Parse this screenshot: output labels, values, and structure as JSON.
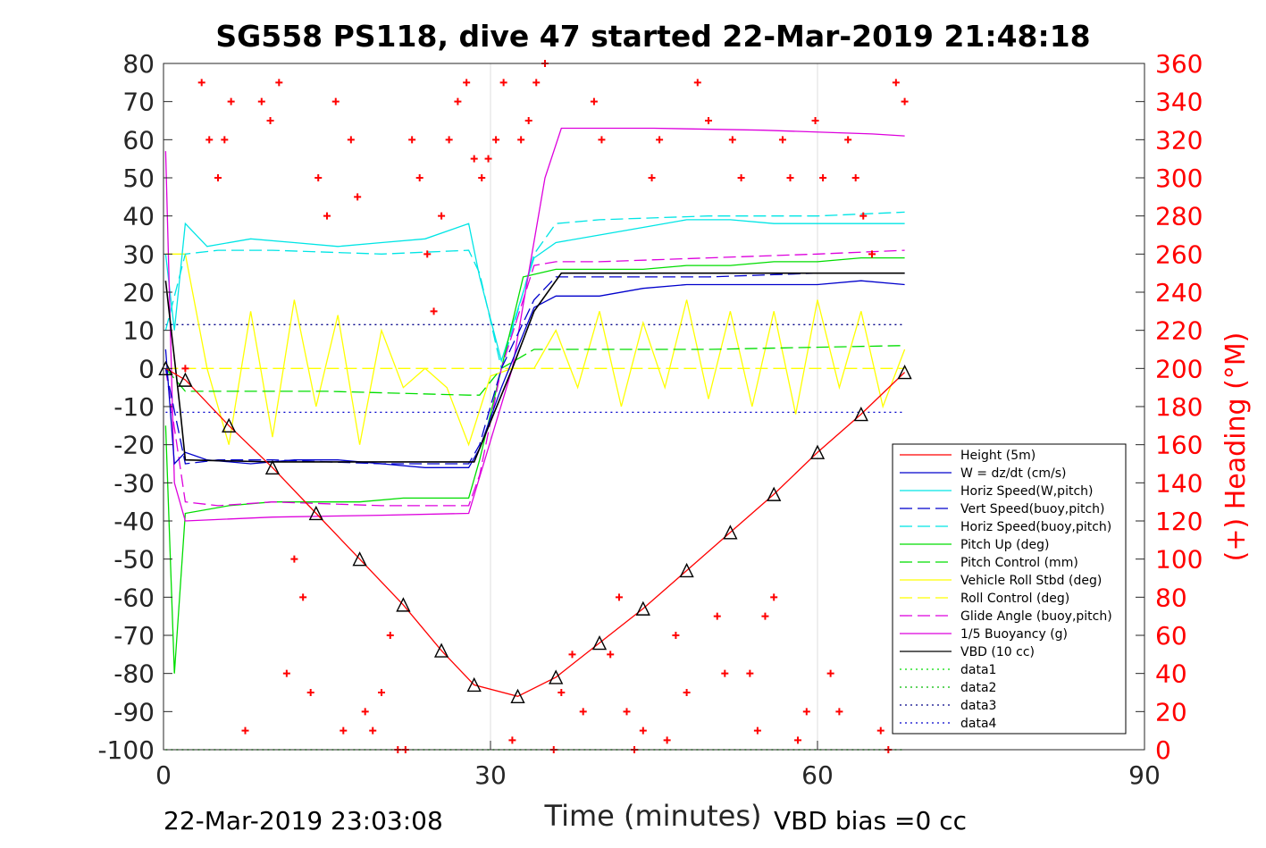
{
  "chart_data": {
    "type": "line",
    "title": "SG558 PS118, dive 47 started 22-Mar-2019 21:48:18",
    "xlabel": "Time (minutes)",
    "ylabel_right": "(+) Heading (°M)",
    "xlim": [
      0,
      90
    ],
    "ylim": [
      -100,
      80
    ],
    "ylim_right": [
      0,
      360
    ],
    "x_ticks": [
      0,
      30,
      60,
      90
    ],
    "y_ticks": [
      80,
      70,
      60,
      50,
      40,
      30,
      20,
      10,
      0,
      -10,
      -20,
      -30,
      -40,
      -50,
      -60,
      -70,
      -80,
      -90,
      -100
    ],
    "y_ticks_right": [
      360,
      340,
      320,
      300,
      280,
      260,
      240,
      220,
      200,
      180,
      160,
      140,
      120,
      100,
      80,
      60,
      40,
      20,
      0
    ],
    "grid": true,
    "legend_position": "lower-right",
    "footer_left": "22-Mar-2019 23:03:08",
    "footer_right": "VBD bias =0 cc",
    "colors": {
      "heading": "#ff0000",
      "right_axis": "#ff0000"
    },
    "legend": [
      {
        "name": "Height (5m)",
        "color": "#ff0000",
        "style": "solid"
      },
      {
        "name": "W = dz/dt (cm/s)",
        "color": "#0000cc",
        "style": "solid"
      },
      {
        "name": "Horiz Speed(W,pitch)",
        "color": "#00e5e5",
        "style": "solid"
      },
      {
        "name": "Vert Speed(buoy,pitch)",
        "color": "#0000cc",
        "style": "dashed"
      },
      {
        "name": "Horiz Speed(buoy,pitch)",
        "color": "#00e5e5",
        "style": "dashed"
      },
      {
        "name": "Pitch Up (deg)",
        "color": "#00dd00",
        "style": "solid"
      },
      {
        "name": "Pitch Control (mm)",
        "color": "#00dd00",
        "style": "dashed"
      },
      {
        "name": "Vehicle Roll Stbd (deg)",
        "color": "#ffff00",
        "style": "solid"
      },
      {
        "name": "Roll Control (deg)",
        "color": "#ffff00",
        "style": "dashed"
      },
      {
        "name": "Glide Angle (buoy,pitch)",
        "color": "#dd00dd",
        "style": "dashed"
      },
      {
        "name": "1/5 Buoyancy (g)",
        "color": "#dd00dd",
        "style": "solid"
      },
      {
        "name": "VBD (10 cc)",
        "color": "#000000",
        "style": "solid"
      },
      {
        "name": "data1",
        "color": "#00dd00",
        "style": "dotted"
      },
      {
        "name": "data2",
        "color": "#00bb00",
        "style": "dotted"
      },
      {
        "name": "data3",
        "color": "#000088",
        "style": "dotted"
      },
      {
        "name": "data4",
        "color": "#0000cc",
        "style": "dotted"
      }
    ],
    "series": [
      {
        "name": "Height (5m)",
        "x": [
          0.2,
          2,
          6,
          10,
          14,
          18,
          22,
          25.5,
          28.5,
          32.5,
          36,
          40,
          44,
          48,
          52,
          56,
          60,
          64,
          68
        ],
        "y": [
          0,
          -3,
          -15,
          -26,
          -38,
          -50,
          -62,
          -74,
          -83,
          -86,
          -81,
          -72,
          -63,
          -53,
          -43,
          -33,
          -22,
          -12,
          -1
        ]
      },
      {
        "name": "W = dz/dt (cm/s)",
        "x": [
          0.2,
          1,
          2,
          4,
          8,
          12,
          16,
          20,
          24,
          28,
          29,
          31,
          34,
          36,
          40,
          44,
          48,
          52,
          56,
          60,
          64,
          68
        ],
        "y": [
          5,
          -25,
          -22,
          -24,
          -25,
          -24,
          -24,
          -25,
          -26,
          -26,
          -21,
          -5,
          16,
          19,
          19,
          21,
          22,
          22,
          22,
          22,
          23,
          22
        ]
      },
      {
        "name": "Horiz Speed(W,pitch)",
        "x": [
          0.2,
          1,
          2,
          4,
          8,
          12,
          16,
          20,
          24,
          28,
          29,
          31,
          34,
          36,
          40,
          44,
          48,
          52,
          56,
          60,
          64,
          68
        ],
        "y": [
          30,
          10,
          38,
          32,
          34,
          33,
          32,
          33,
          34,
          38,
          24,
          2,
          29,
          33,
          35,
          37,
          39,
          39,
          38,
          38,
          38,
          38
        ]
      },
      {
        "name": "Vert Speed(buoy,pitch)",
        "x": [
          0.2,
          2,
          5,
          10,
          20,
          28,
          29,
          31,
          34,
          36,
          40,
          50,
          60,
          68
        ],
        "y": [
          0,
          -25,
          -24,
          -24,
          -25,
          -25,
          -20,
          0,
          18,
          24,
          24,
          24,
          25,
          25
        ]
      },
      {
        "name": "Horiz Speed(buoy,pitch)",
        "x": [
          0.2,
          2,
          5,
          10,
          20,
          28,
          29,
          31,
          34,
          36,
          40,
          50,
          60,
          68
        ],
        "y": [
          10,
          30,
          31,
          31,
          30,
          31,
          25,
          0,
          30,
          38,
          39,
          40,
          40,
          41
        ]
      },
      {
        "name": "Pitch Up (deg)",
        "x": [
          0.2,
          1,
          2,
          6,
          10,
          14,
          18,
          22,
          26,
          28,
          29,
          31,
          33,
          36,
          40,
          44,
          48,
          52,
          56,
          60,
          64,
          68
        ],
        "y": [
          -15,
          -80,
          -38,
          -36,
          -35,
          -35,
          -35,
          -34,
          -34,
          -34,
          -24,
          0,
          24,
          26,
          26,
          26,
          27,
          27,
          28,
          28,
          29,
          29
        ]
      },
      {
        "name": "Pitch Control (mm)",
        "x": [
          0.2,
          2,
          5,
          15,
          28,
          29,
          31,
          34,
          50,
          68
        ],
        "y": [
          0,
          -6,
          -6,
          -6,
          -7,
          -7,
          0,
          5,
          5,
          6
        ]
      },
      {
        "name": "Vehicle Roll Stbd (deg)",
        "x": [
          0.2,
          2,
          4,
          6,
          8,
          10,
          12,
          14,
          16,
          18,
          20,
          22,
          24,
          26,
          28,
          30,
          32,
          34,
          36,
          38,
          40,
          42,
          44,
          46,
          48,
          50,
          52,
          54,
          56,
          58,
          60,
          62,
          64,
          66,
          68
        ],
        "y": [
          30,
          30,
          0,
          -20,
          15,
          -18,
          18,
          -10,
          14,
          -20,
          10,
          -5,
          0,
          -5,
          -20,
          -2,
          0,
          0,
          10,
          -5,
          15,
          -10,
          12,
          -5,
          18,
          -8,
          15,
          -10,
          15,
          -12,
          18,
          -5,
          15,
          -10,
          5
        ]
      },
      {
        "name": "Roll Control (deg)",
        "x": [
          0.2,
          2,
          10,
          20,
          30,
          40,
          50,
          60,
          68
        ],
        "y": [
          0,
          0,
          0,
          0,
          0,
          0,
          0,
          0,
          0
        ]
      },
      {
        "name": "Glide Angle (buoy,pitch)",
        "x": [
          0.2,
          2,
          5,
          10,
          20,
          28,
          29,
          31,
          34,
          36,
          40,
          50,
          60,
          68
        ],
        "y": [
          0,
          -35,
          -36,
          -35,
          -36,
          -36,
          -28,
          0,
          27,
          28,
          28,
          29,
          30,
          31
        ]
      },
      {
        "name": "1/5 Buoyancy (g)",
        "x": [
          0.2,
          1,
          2,
          10,
          20,
          28,
          32,
          35,
          36.5,
          45,
          55,
          65,
          68
        ],
        "y": [
          57,
          -30,
          -40,
          -39,
          -38.5,
          -38,
          0,
          50,
          63,
          63,
          62.5,
          61.5,
          61
        ]
      },
      {
        "name": "VBD (10 cc)",
        "x": [
          0.2,
          1.5,
          2,
          10,
          20,
          28.5,
          30,
          32,
          34,
          36.5,
          45,
          55,
          68
        ],
        "y": [
          23,
          -10,
          -24,
          -24.5,
          -24.5,
          -24.5,
          -14,
          0,
          15,
          25,
          25,
          25,
          25
        ]
      },
      {
        "name": "data1",
        "x": [
          0.2,
          68
        ],
        "y": [
          -100,
          -100
        ]
      },
      {
        "name": "data2",
        "x": [
          0.2,
          68
        ],
        "y": [
          -100,
          -100
        ]
      },
      {
        "name": "data3",
        "x": [
          0.2,
          68
        ],
        "y": [
          11.5,
          11.5
        ]
      },
      {
        "name": "data4",
        "x": [
          0.2,
          68
        ],
        "y": [
          -11.5,
          -11.5
        ]
      }
    ],
    "heading": {
      "name": "(+) Heading (°M)",
      "x": [
        2,
        3.5,
        4.2,
        5,
        5.6,
        6.2,
        7.5,
        9,
        9.8,
        10.6,
        11.3,
        12,
        12.8,
        13.5,
        14.2,
        15,
        15.8,
        16.5,
        17.2,
        17.8,
        18.5,
        19.2,
        20,
        20.8,
        21.5,
        22.2,
        22.8,
        23.5,
        24.2,
        24.8,
        25.5,
        26.2,
        27,
        27.8,
        28.5,
        29.2,
        29.8,
        30.5,
        31.2,
        32,
        32.8,
        33.5,
        34.2,
        35,
        35.8,
        36.5,
        37.5,
        38.5,
        39.5,
        40.2,
        41,
        41.8,
        42.5,
        43.2,
        44,
        44.8,
        45.5,
        46.2,
        47,
        48,
        49,
        50,
        50.8,
        51.5,
        52.2,
        53,
        53.8,
        54.5,
        55.2,
        56,
        56.8,
        57.5,
        58.2,
        59,
        59.8,
        60.5,
        61.2,
        62,
        62.8,
        63.5,
        64.2,
        65,
        65.8,
        66.5,
        67.2,
        68
      ],
      "y": [
        200,
        350,
        320,
        300,
        320,
        340,
        10,
        340,
        330,
        350,
        40,
        100,
        80,
        30,
        300,
        280,
        340,
        10,
        320,
        290,
        20,
        10,
        30,
        60,
        0,
        0,
        320,
        300,
        260,
        230,
        280,
        320,
        340,
        350,
        310,
        300,
        310,
        320,
        350,
        5,
        320,
        330,
        350,
        360,
        0,
        30,
        50,
        20,
        340,
        320,
        50,
        80,
        20,
        0,
        10,
        300,
        320,
        5,
        60,
        30,
        350,
        330,
        70,
        40,
        320,
        300,
        40,
        10,
        70,
        80,
        320,
        300,
        5,
        20,
        330,
        300,
        40,
        20,
        320,
        300,
        280,
        260,
        10,
        0,
        350,
        340
      ]
    }
  }
}
